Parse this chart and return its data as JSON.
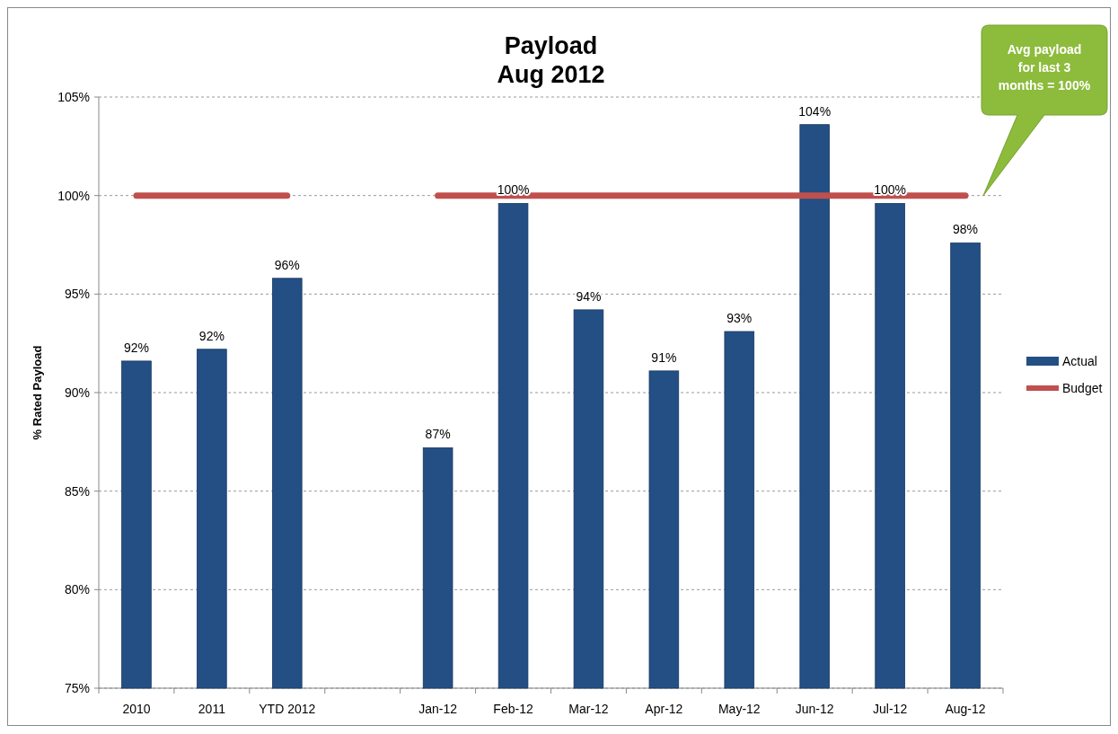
{
  "chart_data": {
    "type": "bar",
    "title": "Payload\nAug 2012",
    "ylabel": "% Rated Payload",
    "categories": [
      "2010",
      "2011",
      "YTD 2012",
      null,
      "Jan-12",
      "Feb-12",
      "Mar-12",
      "Apr-12",
      "May-12",
      "Jun-12",
      "Jul-12",
      "Aug-12"
    ],
    "series": [
      {
        "name": "Actual",
        "color": "#234f85",
        "values": [
          91.6,
          92.2,
          95.8,
          null,
          87.2,
          99.6,
          94.2,
          91.1,
          93.1,
          103.6,
          99.6,
          97.6
        ],
        "value_labels": [
          "92%",
          "92%",
          "96%",
          null,
          "87%",
          "100%",
          "94%",
          "91%",
          "93%",
          "104%",
          "100%",
          "98%"
        ]
      },
      {
        "name": "Budget",
        "type": "line",
        "color": "#c0504d",
        "values": [
          100,
          100,
          100,
          null,
          100,
          100,
          100,
          100,
          100,
          100,
          100,
          100
        ]
      }
    ],
    "ylim": [
      75,
      105
    ],
    "yticks": [
      {
        "value": 75,
        "label": "75%"
      },
      {
        "value": 80,
        "label": "80%"
      },
      {
        "value": 85,
        "label": "85%"
      },
      {
        "value": 90,
        "label": "90%"
      },
      {
        "value": 95,
        "label": "95%"
      },
      {
        "value": 100,
        "label": "100%"
      },
      {
        "value": 105,
        "label": "105%"
      }
    ],
    "grid": "y",
    "legend": "right",
    "annotations": [
      "Avg payload for last 3 months = 100%"
    ]
  }
}
